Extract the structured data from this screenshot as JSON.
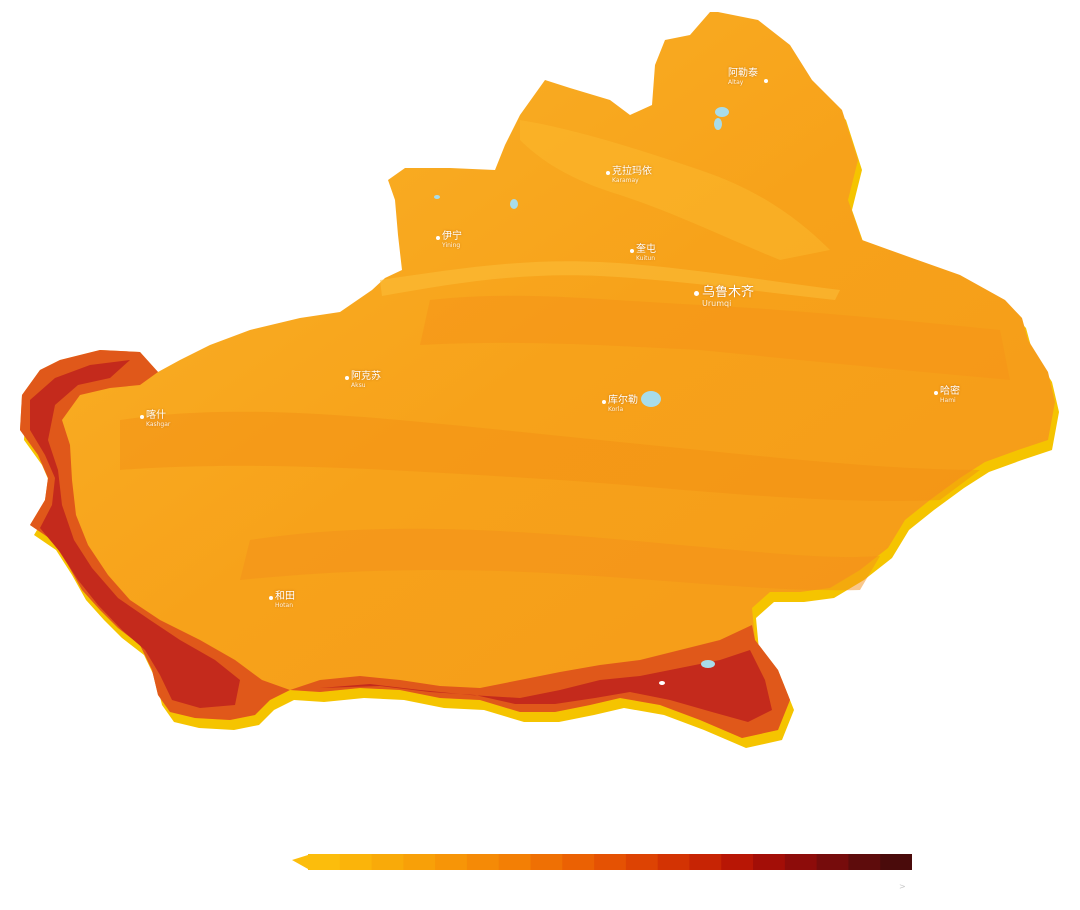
{
  "map": {
    "colors": {
      "ground": "#f7a21a",
      "ground_light": "#fbb52a",
      "edge_3d": "#f5c400",
      "mountain_mid": "#e66a10",
      "mountain_high": "#c9301a",
      "lake": "#a8dcea"
    },
    "cities": [
      {
        "id": "altay",
        "zh": "阿勒泰",
        "en": "Altay"
      },
      {
        "id": "karamay",
        "zh": "克拉玛依",
        "en": "Karamay"
      },
      {
        "id": "yining",
        "zh": "伊宁",
        "en": "Yining"
      },
      {
        "id": "kuitun",
        "zh": "奎屯",
        "en": "Kuitun"
      },
      {
        "id": "urumqi",
        "zh": "乌鲁木齐",
        "en": "Urumqi"
      },
      {
        "id": "aksu",
        "zh": "阿克苏",
        "en": "Aksu"
      },
      {
        "id": "korla",
        "zh": "库尔勒",
        "en": "Korla"
      },
      {
        "id": "kashgar",
        "zh": "喀什",
        "en": "Kashgar"
      },
      {
        "id": "hami",
        "zh": "哈密",
        "en": "Hami"
      },
      {
        "id": "hotan",
        "zh": "和田",
        "en": "Hotan"
      }
    ]
  },
  "legend": {
    "colors": [
      "#fcbd0c",
      "#fbb40a",
      "#f9aa09",
      "#f8a008",
      "#f79507",
      "#f58a06",
      "#f37f05",
      "#ef7004",
      "#eb6103",
      "#e55203",
      "#dd4303",
      "#d33303",
      "#c72404",
      "#b81605",
      "#a30e07",
      "#8d0c0a",
      "#760c0c",
      "#5e0c0c",
      "#4a0b0b"
    ],
    "tick_label": ">"
  }
}
